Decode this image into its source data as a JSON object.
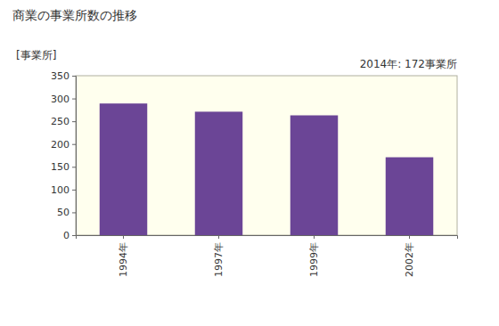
{
  "chart_data": {
    "type": "bar",
    "title": "商業の事業所数の推移",
    "y_label": "[事業所]",
    "annotations": [
      "2014年: 172事業所"
    ],
    "categories": [
      "1994年",
      "1997年",
      "1999年",
      "2002年"
    ],
    "values": [
      289,
      271,
      263,
      171
    ],
    "color": "#6b4596",
    "ylim": [
      0,
      350
    ],
    "yticks": [
      0,
      50,
      100,
      150,
      200,
      250,
      300,
      350
    ],
    "grid": false
  }
}
